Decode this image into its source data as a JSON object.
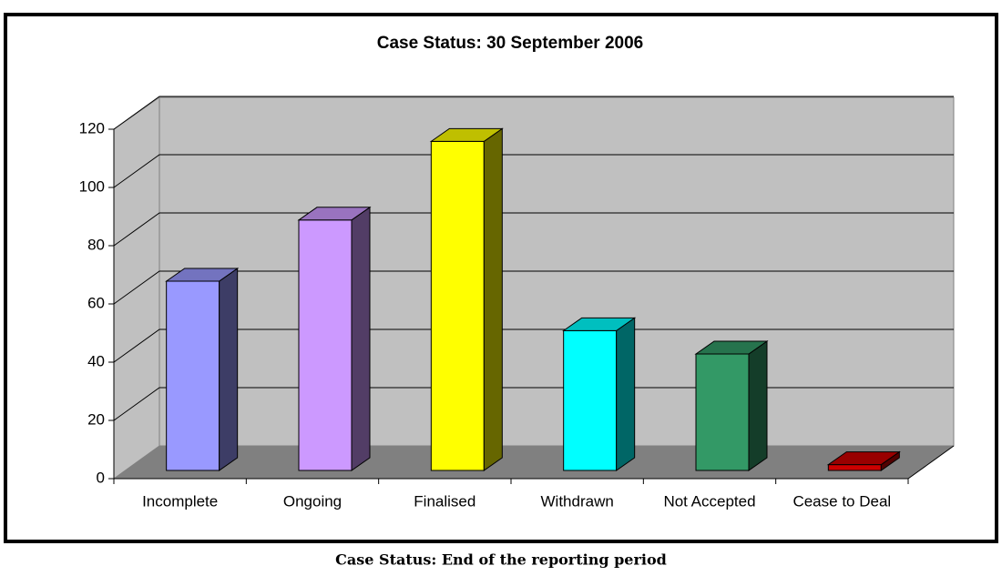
{
  "chart_data": {
    "type": "bar3d",
    "title": "Case Status: 30 September 2006",
    "caption": "Case Status: End of the reporting period",
    "categories": [
      "Incomplete",
      "Ongoing",
      "Finalised",
      "Withdrawn",
      "Not Accepted",
      "Cease to Deal"
    ],
    "values": [
      65,
      86,
      113,
      48,
      40,
      2
    ],
    "colors": [
      "#9999ff",
      "#cc99ff",
      "#ffff00",
      "#00ffff",
      "#339966",
      "#cc0000"
    ],
    "ylim": [
      0,
      120
    ],
    "yticks": [
      0,
      20,
      40,
      60,
      80,
      100,
      120
    ],
    "grid": true
  }
}
